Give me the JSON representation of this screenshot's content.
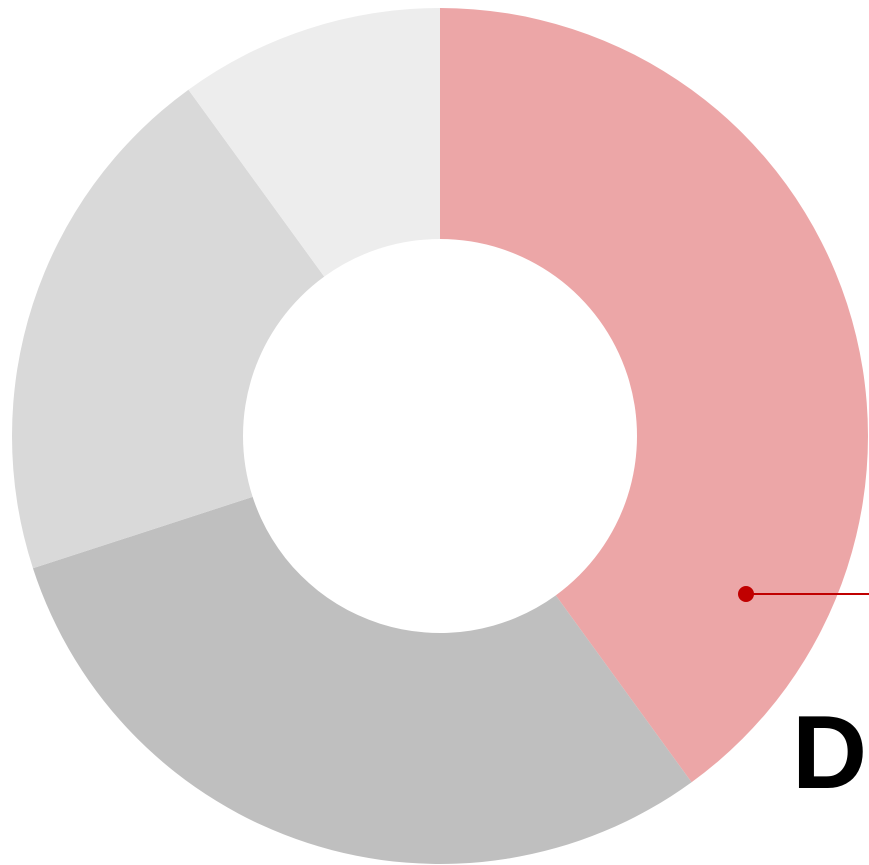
{
  "chart_data": {
    "type": "donut",
    "values": [
      40,
      30,
      20,
      10
    ],
    "colors": [
      "#eca6a7",
      "#bfbfbf",
      "#d9d9d9",
      "#ededed"
    ],
    "annotation": "D",
    "annotation_color": "#c00000"
  }
}
